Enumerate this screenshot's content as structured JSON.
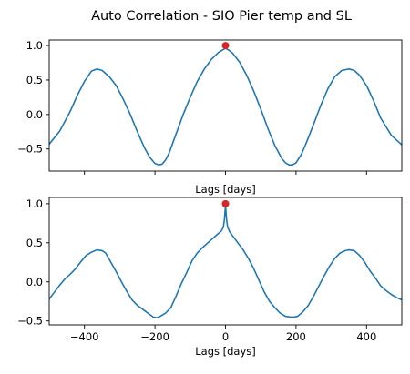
{
  "figure": {
    "suptitle": "Auto Correlation - SIO Pier temp and SL"
  },
  "chart_data": [
    {
      "type": "line",
      "panel": "top",
      "title": "",
      "xlabel": "Lags [days]",
      "ylabel": "",
      "xlim": [
        -500,
        500
      ],
      "ylim": [
        -0.82,
        1.08
      ],
      "xticks": [
        -400,
        -200,
        0,
        200,
        400
      ],
      "show_xtick_labels": false,
      "yticks": [
        -0.5,
        0.0,
        0.5,
        1.0
      ],
      "ytick_labels": [
        "−0.5",
        "0.0",
        "0.5",
        "1.0"
      ],
      "grid": false,
      "legend": "none",
      "line_color": "#1f77b4",
      "marker_color": "#d62728",
      "series": [
        {
          "x": [
            -500,
            -470,
            -440,
            -420,
            -400,
            -380,
            -365,
            -350,
            -330,
            -310,
            -290,
            -270,
            -250,
            -230,
            -215,
            -200,
            -190,
            -180,
            -170,
            -160,
            -140,
            -120,
            -100,
            -80,
            -60,
            -40,
            -20,
            -10,
            0,
            10,
            20,
            40,
            60,
            80,
            100,
            120,
            140,
            160,
            170,
            180,
            190,
            200,
            215,
            230,
            250,
            270,
            290,
            310,
            330,
            350,
            365,
            380,
            400,
            420,
            440,
            470,
            500
          ],
          "y": [
            -0.43,
            -0.24,
            0.05,
            0.28,
            0.48,
            0.63,
            0.66,
            0.64,
            0.55,
            0.42,
            0.22,
            0.0,
            -0.25,
            -0.48,
            -0.62,
            -0.71,
            -0.73,
            -0.72,
            -0.66,
            -0.56,
            -0.28,
            0.0,
            0.25,
            0.48,
            0.66,
            0.8,
            0.9,
            0.93,
            0.96,
            0.93,
            0.89,
            0.76,
            0.57,
            0.34,
            0.08,
            -0.2,
            -0.45,
            -0.64,
            -0.7,
            -0.73,
            -0.73,
            -0.7,
            -0.58,
            -0.4,
            -0.14,
            0.13,
            0.37,
            0.55,
            0.64,
            0.66,
            0.64,
            0.57,
            0.42,
            0.2,
            -0.05,
            -0.3,
            -0.44
          ]
        }
      ],
      "marker": {
        "x": 0,
        "y": 1.0
      }
    },
    {
      "type": "line",
      "panel": "bottom",
      "title": "",
      "xlabel": "Lags [days]",
      "ylabel": "",
      "xlim": [
        -500,
        500
      ],
      "ylim": [
        -0.55,
        1.08
      ],
      "xticks": [
        -400,
        -200,
        0,
        200,
        400
      ],
      "xtick_labels": [
        "−400",
        "−200",
        "0",
        "200",
        "400"
      ],
      "show_xtick_labels": true,
      "yticks": [
        -0.5,
        0.0,
        0.5,
        1.0
      ],
      "ytick_labels": [
        "−0.5",
        "0.0",
        "0.5",
        "1.0"
      ],
      "grid": false,
      "legend": "none",
      "line_color": "#1f77b4",
      "marker_color": "#d62728",
      "series": [
        {
          "x": [
            -500,
            -485,
            -470,
            -455,
            -440,
            -425,
            -410,
            -395,
            -380,
            -365,
            -350,
            -340,
            -325,
            -310,
            -295,
            -280,
            -265,
            -250,
            -235,
            -220,
            -205,
            -195,
            -185,
            -170,
            -155,
            -140,
            -125,
            -110,
            -95,
            -80,
            -65,
            -50,
            -35,
            -20,
            -12,
            -6,
            -3,
            0,
            3,
            6,
            12,
            20,
            35,
            50,
            65,
            80,
            95,
            110,
            125,
            140,
            155,
            170,
            185,
            195,
            205,
            220,
            235,
            250,
            265,
            280,
            295,
            310,
            325,
            340,
            350,
            365,
            380,
            395,
            410,
            425,
            440,
            455,
            470,
            485,
            500
          ],
          "y": [
            -0.22,
            -0.13,
            -0.04,
            0.04,
            0.1,
            0.17,
            0.26,
            0.34,
            0.38,
            0.41,
            0.4,
            0.37,
            0.25,
            0.13,
            0.0,
            -0.12,
            -0.23,
            -0.3,
            -0.35,
            -0.4,
            -0.45,
            -0.46,
            -0.44,
            -0.4,
            -0.33,
            -0.18,
            -0.02,
            0.12,
            0.27,
            0.37,
            0.44,
            0.5,
            0.56,
            0.62,
            0.65,
            0.7,
            0.8,
            0.98,
            0.8,
            0.7,
            0.64,
            0.59,
            0.5,
            0.41,
            0.3,
            0.17,
            0.02,
            -0.13,
            -0.25,
            -0.33,
            -0.4,
            -0.44,
            -0.45,
            -0.45,
            -0.44,
            -0.38,
            -0.3,
            -0.18,
            -0.05,
            0.08,
            0.2,
            0.3,
            0.37,
            0.4,
            0.41,
            0.4,
            0.34,
            0.25,
            0.14,
            0.05,
            -0.05,
            -0.11,
            -0.16,
            -0.2,
            -0.23
          ]
        }
      ],
      "marker": {
        "x": 0,
        "y": 1.0
      }
    }
  ]
}
